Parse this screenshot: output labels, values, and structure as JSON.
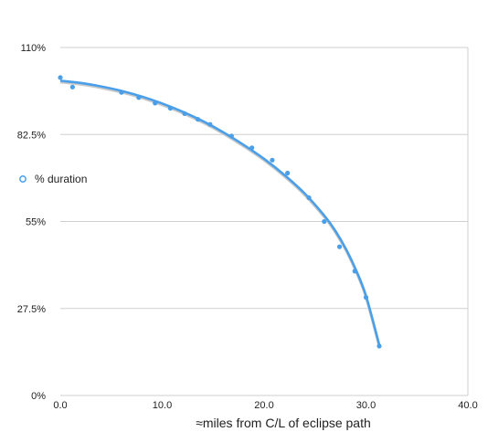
{
  "chart_data": {
    "type": "scatter",
    "title": "",
    "xlabel": "≈miles from C/L of eclipse path",
    "ylabel": "",
    "xlim": [
      0,
      40
    ],
    "ylim": [
      0,
      110
    ],
    "x_ticks": [
      "0.0",
      "10.0",
      "20.0",
      "30.0",
      "40.0"
    ],
    "x_tick_values": [
      0,
      10,
      20,
      30,
      40
    ],
    "y_ticks": [
      "0%",
      "27.5%",
      "55%",
      "82.5%",
      "110%"
    ],
    "y_tick_values": [
      0,
      27.5,
      55,
      82.5,
      110
    ],
    "grid": "horizontal",
    "legend_position": "left",
    "series": [
      {
        "name": "% duration",
        "color": "#4a9fe8",
        "x": [
          0.0,
          1.2,
          6.0,
          7.7,
          9.3,
          10.8,
          12.2,
          13.5,
          14.7,
          16.8,
          18.8,
          20.8,
          22.3,
          24.4,
          25.9,
          27.4,
          28.9,
          30.0,
          31.3
        ],
        "y": [
          100.5,
          97.5,
          95.8,
          94.2,
          92.4,
          90.8,
          89.1,
          87.3,
          85.7,
          82.0,
          78.3,
          74.4,
          70.3,
          62.5,
          55.0,
          47.0,
          39.3,
          31.0,
          15.6
        ]
      }
    ],
    "trendline": {
      "color": "#4a9fe8",
      "x": [
        0,
        2,
        4,
        6,
        8,
        10,
        12,
        14,
        16,
        18,
        20,
        22,
        24,
        26,
        27,
        28,
        29,
        30,
        31.3
      ],
      "y": [
        99.5,
        98.8,
        97.7,
        96.3,
        94.5,
        92.3,
        89.7,
        86.7,
        83.2,
        79.2,
        74.8,
        69.7,
        63.8,
        56.5,
        52.0,
        46.5,
        39.8,
        31.5,
        16.0
      ]
    }
  }
}
